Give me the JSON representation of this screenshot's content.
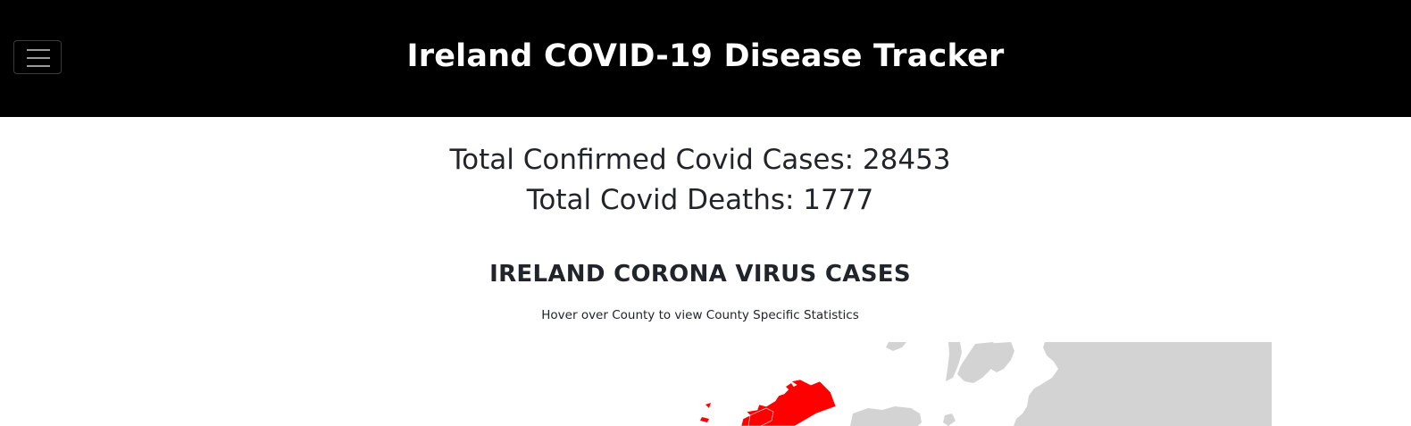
{
  "header": {
    "menu_icon": "hamburger-menu-icon",
    "title": "Ireland COVID-19 Disease Tracker"
  },
  "stats": {
    "confirmed_label": "Total Confirmed Covid Cases: 28453",
    "confirmed_value": 28453,
    "deaths_label": "Total Covid Deaths: 1777",
    "deaths_value": 1777
  },
  "map_section": {
    "title": "IRELAND CORONA VIRUS CASES",
    "hint": "Hover over County to view County Specific Statistics"
  },
  "colors": {
    "navbar_bg": "#000000",
    "county_highlight": "#ff0000",
    "land": "#d3d3d3"
  }
}
